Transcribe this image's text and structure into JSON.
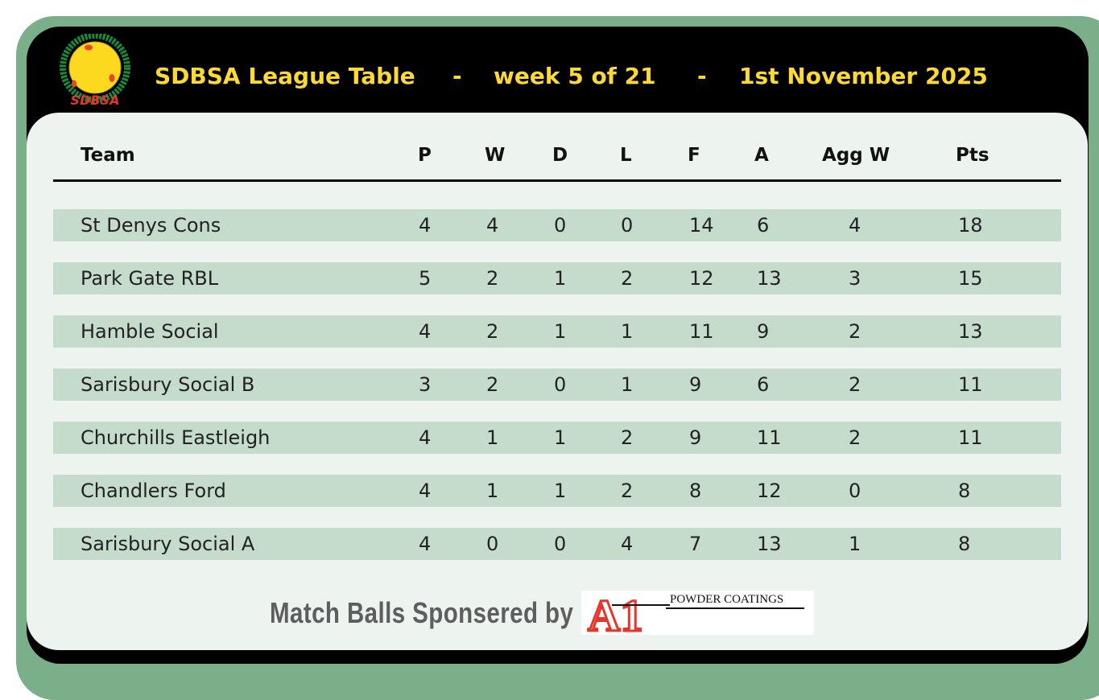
{
  "header": {
    "logo_text": "SDBSA",
    "logo_ring_text": "SOUTHAMPTON AND DISTRICT BILLIARDS & SNOOKER ASSOCIATION",
    "title": "SDBSA League Table",
    "week": "week 5 of 21",
    "date": "1st November 2025",
    "separator": "-"
  },
  "table": {
    "columns": [
      "Team",
      "P",
      "W",
      "D",
      "L",
      "F",
      "A",
      "Agg W",
      "Pts"
    ],
    "rows": [
      [
        "St Denys Cons",
        "4",
        "4",
        "0",
        "0",
        "14",
        "6",
        "4",
        "18"
      ],
      [
        "Park Gate RBL",
        "5",
        "2",
        "1",
        "2",
        "12",
        "13",
        "3",
        "15"
      ],
      [
        "Hamble Social",
        "4",
        "2",
        "1",
        "1",
        "11",
        "9",
        "2",
        "13"
      ],
      [
        "Sarisbury Social B",
        "3",
        "2",
        "0",
        "1",
        "9",
        "6",
        "2",
        "11"
      ],
      [
        "Churchills Eastleigh",
        "4",
        "1",
        "1",
        "2",
        "9",
        "11",
        "2",
        "11"
      ],
      [
        "Chandlers Ford",
        "4",
        "1",
        "1",
        "2",
        "8",
        "12",
        "0",
        "8"
      ],
      [
        "Sarisbury Social A",
        "4",
        "0",
        "0",
        "4",
        "7",
        "13",
        "1",
        "8"
      ]
    ]
  },
  "footer": {
    "sponsor_label": "Match Balls Sponsered by",
    "sponsor_logo_letters": "A1",
    "sponsor_name": "POWDER COATINGS"
  },
  "colors": {
    "frame": "#7aaf8a",
    "title": "#fcd933",
    "row": "#c5dbcc",
    "panel": "#edf3ef",
    "sponsor_red": "#e8352a"
  }
}
